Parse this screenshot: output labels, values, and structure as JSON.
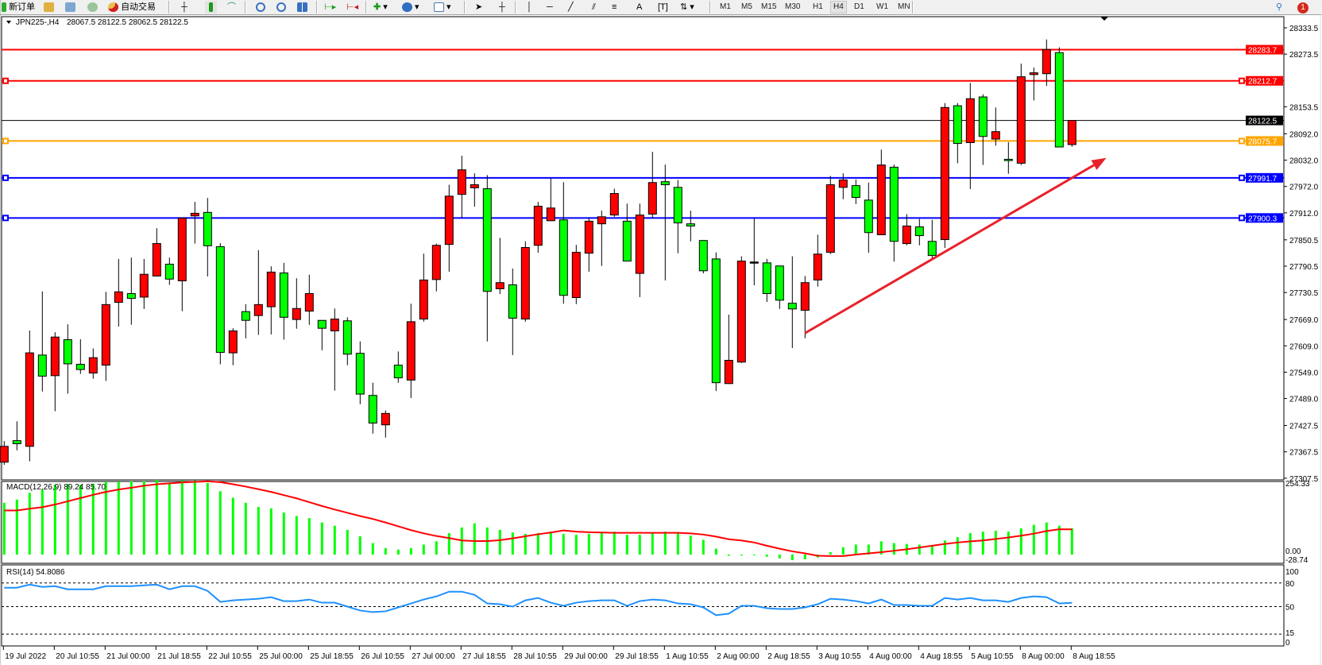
{
  "toolbar": {
    "new_order_label": "新订单",
    "autotrade_label": "自动交易",
    "icons": [
      "new-order-icon",
      "market-watch-icon",
      "navigator-icon",
      "signals-icon",
      "autotrade-icon",
      "bar-chart-icon",
      "candlestick-icon",
      "line-chart-icon",
      "zoom-in-icon",
      "zoom-out-icon",
      "tile-windows-icon",
      "autoscroll-icon",
      "chart-shift-icon",
      "indicators-icon",
      "periods-icon",
      "templates-icon",
      "cursor-icon",
      "crosshair-icon",
      "vertical-line-icon",
      "horizontal-line-icon",
      "trendline-icon",
      "equidistant-channel-icon",
      "fibonacci-icon",
      "text-icon",
      "text-label-icon",
      "arrows-icon",
      "search-icon",
      "notifications-icon"
    ],
    "timeframes": [
      "M1",
      "M5",
      "M15",
      "M30",
      "H1",
      "H4",
      "D1",
      "W1",
      "MN"
    ],
    "active_timeframe": "H4",
    "notification_count": "1"
  },
  "chart_header": {
    "symbol": "JPN225-,H4",
    "ohlc": "28067.5 28122.5 28062.5 28122.5"
  },
  "colors": {
    "bull_candle": "#ff0000",
    "bear_candle": "#00ff00",
    "macd_histogram": "#00ff00",
    "macd_signal": "#ff0000",
    "rsi_line": "#1e90ff",
    "trendline": "#e8212a"
  },
  "chart_data": [
    {
      "type": "candlestick",
      "symbol": "JPN225-",
      "timeframe": "H4",
      "x_tick_labels": [
        "19 Jul 2022",
        "20 Jul 10:55",
        "21 Jul 00:00",
        "21 Jul 18:55",
        "22 Jul 10:55",
        "25 Jul 00:00",
        "25 Jul 18:55",
        "26 Jul 10:55",
        "27 Jul 00:00",
        "27 Jul 18:55",
        "28 Jul 10:55",
        "29 Jul 00:00",
        "29 Jul 18:55",
        "1 Aug 10:55",
        "2 Aug 00:00",
        "2 Aug 18:55",
        "3 Aug 10:55",
        "4 Aug 00:00",
        "4 Aug 18:55",
        "5 Aug 10:55",
        "8 Aug 00:00",
        "8 Aug 18:55"
      ],
      "x_tick_every_n_bars": 4,
      "y_tick_labels": [
        "28333.5",
        "28273.5",
        "28153.5",
        "28092.0",
        "28032.0",
        "27972.0",
        "27912.0",
        "27850.5",
        "27790.5",
        "27730.5",
        "27669.0",
        "27609.0",
        "27549.0",
        "27489.0",
        "27427.5",
        "27367.5",
        "27307.5"
      ],
      "ylim": [
        27300,
        28345
      ],
      "ohlc_fields": [
        "open",
        "high",
        "low",
        "close"
      ],
      "ohlc": [
        [
          27344,
          27392,
          27338,
          27380
        ],
        [
          27393,
          27437,
          27371,
          27386
        ],
        [
          27380,
          27644,
          27346,
          27593
        ],
        [
          27588,
          27733,
          27505,
          27540
        ],
        [
          27541,
          27640,
          27460,
          27629
        ],
        [
          27623,
          27658,
          27500,
          27568
        ],
        [
          27567,
          27624,
          27545,
          27555
        ],
        [
          27547,
          27603,
          27534,
          27582
        ],
        [
          27565,
          27732,
          27529,
          27703
        ],
        [
          27708,
          27807,
          27653,
          27732
        ],
        [
          27728,
          27810,
          27657,
          27717
        ],
        [
          27720,
          27807,
          27693,
          27772
        ],
        [
          27768,
          27877,
          27768,
          27842
        ],
        [
          27795,
          27810,
          27748,
          27761
        ],
        [
          27757,
          27900,
          27688,
          27900
        ],
        [
          27905,
          27937,
          27842,
          27911
        ],
        [
          27913,
          27946,
          27767,
          27837
        ],
        [
          27835,
          27843,
          27567,
          27594
        ],
        [
          27593,
          27649,
          27565,
          27643
        ],
        [
          27687,
          27704,
          27626,
          27667
        ],
        [
          27678,
          27827,
          27634,
          27703
        ],
        [
          27698,
          27790,
          27635,
          27777
        ],
        [
          27775,
          27798,
          27623,
          27674
        ],
        [
          27669,
          27763,
          27648,
          27694
        ],
        [
          27688,
          27771,
          27657,
          27728
        ],
        [
          27667,
          27667,
          27599,
          27649
        ],
        [
          27643,
          27694,
          27507,
          27670
        ],
        [
          27666,
          27674,
          27565,
          27590
        ],
        [
          27592,
          27619,
          27476,
          27499
        ],
        [
          27496,
          27525,
          27409,
          27433
        ],
        [
          27429,
          27462,
          27400,
          27455
        ],
        [
          27565,
          27596,
          27525,
          27536
        ],
        [
          27531,
          27705,
          27490,
          27664
        ],
        [
          27670,
          27819,
          27664,
          27759
        ],
        [
          27760,
          27842,
          27733,
          27838
        ],
        [
          27840,
          27976,
          27778,
          27950
        ],
        [
          27954,
          28042,
          27901,
          28010
        ],
        [
          27969,
          28002,
          27926,
          27976
        ],
        [
          27967,
          27998,
          27619,
          27733
        ],
        [
          27739,
          27855,
          27727,
          27753
        ],
        [
          27748,
          27785,
          27588,
          27672
        ],
        [
          27670,
          27847,
          27664,
          27833
        ],
        [
          27838,
          27937,
          27821,
          27927
        ],
        [
          27894,
          27991,
          27894,
          27923
        ],
        [
          27896,
          27982,
          27705,
          27724
        ],
        [
          27719,
          27839,
          27704,
          27822
        ],
        [
          27820,
          27901,
          27778,
          27893
        ],
        [
          27887,
          27917,
          27791,
          27903
        ],
        [
          27907,
          27967,
          27903,
          27956
        ],
        [
          27893,
          27933,
          27802,
          27802
        ],
        [
          27774,
          27933,
          27720,
          27907
        ],
        [
          27909,
          28051,
          27901,
          27981
        ],
        [
          27983,
          28022,
          27758,
          27976
        ],
        [
          27970,
          27987,
          27820,
          27889
        ],
        [
          27887,
          27917,
          27847,
          27882
        ],
        [
          27849,
          27849,
          27774,
          27780
        ],
        [
          27807,
          27822,
          27506,
          27525
        ],
        [
          27523,
          27680,
          27522,
          27576
        ],
        [
          27572,
          27813,
          27570,
          27802
        ],
        [
          27800,
          27899,
          27747,
          27800
        ],
        [
          27798,
          27807,
          27709,
          27728
        ],
        [
          27791,
          27791,
          27693,
          27713
        ],
        [
          27706,
          27813,
          27604,
          27693
        ],
        [
          27690,
          27768,
          27626,
          27753
        ],
        [
          27759,
          27862,
          27744,
          27818
        ],
        [
          27822,
          27996,
          27818,
          27976
        ],
        [
          27970,
          28002,
          27943,
          27987
        ],
        [
          27974,
          27988,
          27932,
          27947
        ],
        [
          27941,
          27981,
          27821,
          27867
        ],
        [
          27862,
          28056,
          27862,
          28021
        ],
        [
          28016,
          28022,
          27801,
          27847
        ],
        [
          27842,
          27909,
          27838,
          27882
        ],
        [
          27880,
          27898,
          27838,
          27860
        ],
        [
          27847,
          27896,
          27806,
          27815
        ],
        [
          27851,
          28162,
          27832,
          28152
        ],
        [
          28156,
          28162,
          28025,
          28070
        ],
        [
          28072,
          28208,
          27966,
          28172
        ],
        [
          28176,
          28182,
          28021,
          28086
        ],
        [
          28080,
          28152,
          28065,
          28097
        ],
        [
          28034,
          28073,
          28001,
          28031
        ],
        [
          28025,
          28252,
          28021,
          28222
        ],
        [
          28227,
          28243,
          28168,
          28231
        ],
        [
          28229,
          28307,
          28201,
          28284
        ],
        [
          28277,
          28289,
          28062,
          28062
        ],
        [
          28067.5,
          28122.5,
          28062.5,
          28122.5
        ]
      ],
      "horizontal_lines": [
        {
          "price": 28283.7,
          "label": "28283.7",
          "color": "#ff0000",
          "handles": false
        },
        {
          "price": 28212.7,
          "label": "28212.7",
          "color": "#ff0000",
          "handles": true
        },
        {
          "price": 28122.5,
          "label": "28122.5",
          "color": "#000000",
          "handles": false,
          "kind": "bid"
        },
        {
          "price": 28075.7,
          "label": "28075.7",
          "color": "#ffa500",
          "handles": true
        },
        {
          "price": 27991.7,
          "label": "27991.7",
          "color": "#0000ff",
          "handles": true
        },
        {
          "price": 27900.3,
          "label": "27900.3",
          "color": "#0000ff",
          "handles": true
        }
      ],
      "trend_arrow": {
        "from": {
          "bar": 63,
          "price": 27638
        },
        "to": {
          "bar": 86.7,
          "price": 28037
        }
      }
    },
    {
      "type": "bar+line",
      "title": "MACD(12,26,9) 89.24 85.70",
      "y_tick_labels": [
        "254.33",
        "0.00",
        "-28.74"
      ],
      "ylim": [
        -28.74,
        254.33
      ],
      "histogram": [
        176,
        187,
        210,
        221,
        237,
        240,
        237,
        240,
        248,
        248,
        249,
        249,
        254,
        244,
        252,
        252,
        243,
        215,
        193,
        176,
        162,
        157,
        143,
        131,
        124,
        109,
        98,
        84,
        62,
        39,
        22,
        17,
        22,
        34,
        45,
        73,
        92,
        106,
        92,
        84,
        75,
        70,
        73,
        78,
        70,
        67,
        70,
        73,
        78,
        67,
        67,
        73,
        78,
        73,
        64,
        50,
        20,
        -4,
        -3,
        -2,
        -7,
        -13,
        -19,
        -16,
        -10,
        8,
        25,
        34,
        34,
        45,
        39,
        36,
        34,
        28,
        48,
        59,
        73,
        78,
        81,
        78,
        89,
        101,
        109,
        98,
        89.24
      ],
      "signal": [
        150,
        150,
        156,
        161,
        170,
        181,
        192,
        203,
        213,
        221,
        227,
        234,
        239,
        242,
        245,
        247,
        249,
        246,
        239,
        231,
        222,
        213,
        202,
        191,
        178,
        165,
        153,
        142,
        131,
        121,
        109,
        96,
        83,
        72,
        63,
        56,
        48,
        46,
        46,
        49,
        55,
        62,
        69,
        75,
        82,
        78,
        76,
        75,
        74,
        74,
        74,
        74,
        74,
        74,
        72,
        68,
        61,
        52,
        48,
        41,
        30,
        20,
        11,
        4,
        -4,
        -5,
        -5,
        0,
        4,
        8,
        13,
        18,
        24,
        30,
        36,
        41,
        45,
        48,
        53,
        58,
        64,
        71,
        80,
        86,
        85.7
      ]
    },
    {
      "type": "line",
      "title": "RSI(14) 54.8086",
      "y_tick_labels": [
        "100",
        "80",
        "50",
        "15",
        "0"
      ],
      "levels": [
        80,
        50,
        15
      ],
      "ylim": [
        0,
        100
      ],
      "values": [
        74,
        74,
        78,
        75,
        76,
        72,
        72,
        72,
        76,
        76,
        76,
        77,
        78,
        72,
        76,
        76,
        70,
        56,
        58,
        59,
        60,
        62,
        57,
        57,
        59,
        55,
        55,
        50,
        45,
        43,
        44,
        49,
        54,
        59,
        63,
        69,
        69,
        65,
        54,
        53,
        50,
        58,
        61,
        55,
        51,
        55,
        57,
        58,
        58,
        51,
        57,
        59,
        58,
        54,
        53,
        49,
        39,
        41,
        51,
        51,
        48,
        47,
        47,
        49,
        53,
        60,
        59,
        57,
        54,
        59,
        52,
        52,
        51,
        51,
        61,
        59,
        61,
        58,
        58,
        56,
        61,
        63,
        62,
        54,
        54.81
      ]
    }
  ]
}
